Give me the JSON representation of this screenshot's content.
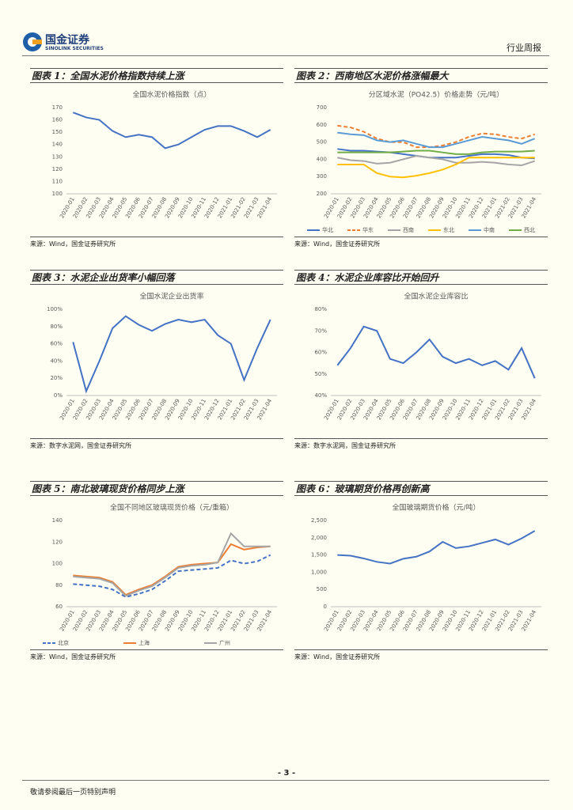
{
  "header": {
    "company": "国金证券",
    "company_en": "SINOLINK SECURITIES",
    "report_type": "行业周报"
  },
  "figures": [
    {
      "caption": "图表 1：全国水泥价格指数持续上涨",
      "source": "来源：Wind，国金证券研究所"
    },
    {
      "caption": "图表 2：西南地区水泥价格涨幅最大",
      "source": "来源：Wind，国金证券研究所"
    },
    {
      "caption": "图表 3：水泥企业出货率小幅回落",
      "source": "来源：数字水泥网，国金证券研究所"
    },
    {
      "caption": "图表 4：水泥企业库容比开始回升",
      "source": "来源：数字水泥网，国金证券研究所"
    },
    {
      "caption": "图表 5：南北玻璃现货价格同步上涨",
      "source": "来源：Wind，国金证券研究所"
    },
    {
      "caption": "图表 6：玻璃期货价格再创新高",
      "source": "来源：Wind，国金证券研究所"
    }
  ],
  "chart_data": [
    {
      "type": "line",
      "title": "全国水泥价格指数（点）",
      "categories": [
        "2020-01",
        "2020-02",
        "2020-03",
        "2020-04",
        "2020-05",
        "2020-06",
        "2020-07",
        "2020-08",
        "2020-09",
        "2020-10",
        "2020-11",
        "2020-12",
        "2021-01",
        "2021-02",
        "2021-03",
        "2021-04"
      ],
      "series": [
        {
          "name": "全国水泥价格指数",
          "color": "#4472c4",
          "values": [
            166,
            162,
            160,
            151,
            146,
            148,
            146,
            137,
            140,
            146,
            152,
            155,
            155,
            151,
            146,
            152
          ]
        }
      ],
      "ylim": [
        100,
        170
      ],
      "yticks": [
        100,
        110,
        120,
        130,
        140,
        150,
        160,
        170
      ],
      "legend": false
    },
    {
      "type": "line",
      "title": "分区域水泥（PO42.5）价格走势（元/吨）",
      "categories": [
        "2020-01",
        "2020-02",
        "2020-03",
        "2020-04",
        "2020-05",
        "2020-06",
        "2020-07",
        "2020-08",
        "2020-09",
        "2020-10",
        "2020-11",
        "2020-12",
        "2021-01",
        "2021-02",
        "2021-03",
        "2021-04"
      ],
      "series": [
        {
          "name": "华北",
          "color": "#4472c4",
          "values": [
            460,
            450,
            450,
            445,
            440,
            430,
            420,
            410,
            410,
            410,
            420,
            430,
            430,
            425,
            410,
            405
          ]
        },
        {
          "name": "华东",
          "color": "#ed7d31",
          "dash": true,
          "values": [
            595,
            585,
            560,
            520,
            500,
            500,
            470,
            470,
            480,
            500,
            530,
            550,
            545,
            530,
            520,
            545
          ]
        },
        {
          "name": "西南",
          "color": "#a5a5a5",
          "values": [
            410,
            395,
            390,
            375,
            380,
            400,
            420,
            410,
            400,
            380,
            380,
            385,
            380,
            370,
            365,
            390
          ]
        },
        {
          "name": "东北",
          "color": "#ffc000",
          "values": [
            370,
            370,
            370,
            320,
            300,
            295,
            305,
            320,
            340,
            370,
            410,
            410,
            410,
            410,
            410,
            410
          ]
        },
        {
          "name": "中南",
          "color": "#5b9bd5",
          "values": [
            555,
            545,
            540,
            510,
            500,
            510,
            490,
            470,
            470,
            490,
            510,
            530,
            520,
            510,
            490,
            520
          ]
        },
        {
          "name": "西北",
          "color": "#70ad47",
          "values": [
            440,
            440,
            440,
            440,
            440,
            445,
            450,
            450,
            440,
            430,
            430,
            440,
            445,
            445,
            445,
            450
          ]
        }
      ],
      "ylim": [
        200,
        700
      ],
      "yticks": [
        200,
        300,
        400,
        500,
        600,
        700
      ],
      "legend": true
    },
    {
      "type": "line",
      "title": "全国水泥企业出货率",
      "categories": [
        "2020-01",
        "2020-02",
        "2020-03",
        "2020-04",
        "2020-05",
        "2020-06",
        "2020-07",
        "2020-08",
        "2020-09",
        "2020-10",
        "2020-11",
        "2020-12",
        "2021-01",
        "2021-02",
        "2021-03",
        "2021-04"
      ],
      "series": [
        {
          "name": "全国水泥企业出货率",
          "color": "#4472c4",
          "values": [
            62,
            5,
            40,
            78,
            92,
            82,
            75,
            83,
            88,
            85,
            88,
            70,
            60,
            18,
            55,
            88
          ]
        }
      ],
      "ylim": [
        0,
        100
      ],
      "yticks": [
        {
          "value": 0,
          "label": "0%"
        },
        {
          "value": 20,
          "label": "20%"
        },
        {
          "value": 40,
          "label": "40%"
        },
        {
          "value": 60,
          "label": "60%"
        },
        {
          "value": 80,
          "label": "80%"
        },
        {
          "value": 100,
          "label": "100%"
        }
      ],
      "legend": false
    },
    {
      "type": "line",
      "title": "全国水泥企业库容比",
      "categories": [
        "2020-01",
        "2020-02",
        "2020-03",
        "2020-04",
        "2020-05",
        "2020-06",
        "2020-07",
        "2020-08",
        "2020-09",
        "2020-10",
        "2020-11",
        "2020-12",
        "2021-01",
        "2021-02",
        "2021-03",
        "2021-04"
      ],
      "series": [
        {
          "name": "全国水泥企业库容比",
          "color": "#4472c4",
          "values": [
            54,
            62,
            72,
            70,
            57,
            55,
            60,
            66,
            58,
            55,
            57,
            54,
            56,
            52,
            62,
            48
          ]
        }
      ],
      "ylim": [
        40,
        80
      ],
      "yticks": [
        {
          "value": 40,
          "label": "40%"
        },
        {
          "value": 50,
          "label": "50%"
        },
        {
          "value": 60,
          "label": "60%"
        },
        {
          "value": 70,
          "label": "70%"
        },
        {
          "value": 80,
          "label": "80%"
        }
      ],
      "legend": false
    },
    {
      "type": "line",
      "title": "全国不同地区玻璃现货价格（元/重箱）",
      "categories": [
        "2020-01",
        "2020-02",
        "2020-03",
        "2020-04",
        "2020-05",
        "2020-06",
        "2020-07",
        "2020-08",
        "2020-09",
        "2020-10",
        "2020-11",
        "2020-12",
        "2021-01",
        "2021-02",
        "2021-03",
        "2021-04"
      ],
      "series": [
        {
          "name": "北京",
          "color": "#4472c4",
          "dash": true,
          "values": [
            81,
            80,
            79,
            76,
            69,
            72,
            76,
            84,
            93,
            94,
            95,
            96,
            103,
            100,
            102,
            108
          ]
        },
        {
          "name": "上海",
          "color": "#ed7d31",
          "values": [
            89,
            88,
            87,
            83,
            71,
            76,
            80,
            88,
            97,
            99,
            100,
            101,
            118,
            113,
            115,
            116
          ]
        },
        {
          "name": "广州",
          "color": "#a5a5a5",
          "values": [
            88,
            87,
            86,
            82,
            70,
            75,
            79,
            87,
            96,
            98,
            99,
            101,
            128,
            116,
            116,
            116
          ]
        }
      ],
      "ylim": [
        60,
        140
      ],
      "yticks": [
        60,
        80,
        100,
        120,
        140
      ],
      "legend": true
    },
    {
      "type": "line",
      "title": "全国玻璃期货价格（元/吨）",
      "categories": [
        "2020-01",
        "2020-02",
        "2020-03",
        "2020-04",
        "2020-05",
        "2020-06",
        "2020-07",
        "2020-08",
        "2020-09",
        "2020-10",
        "2020-11",
        "2020-12",
        "2021-01",
        "2021-02",
        "2021-03",
        "2021-04"
      ],
      "series": [
        {
          "name": "全国玻璃期货价格",
          "color": "#4472c4",
          "values": [
            1500,
            1480,
            1400,
            1300,
            1250,
            1390,
            1450,
            1600,
            1880,
            1700,
            1750,
            1850,
            1950,
            1800,
            1980,
            2200
          ]
        }
      ],
      "ylim": [
        0,
        2500
      ],
      "yticks": [
        0,
        500,
        {
          "value": 1000,
          "label": "1,000"
        },
        {
          "value": 1500,
          "label": "1,500"
        },
        {
          "value": 2000,
          "label": "2,000"
        },
        {
          "value": 2500,
          "label": "2,500"
        }
      ],
      "legend": false
    }
  ],
  "footer": {
    "page": "- 3 -",
    "disclaimer": "敬请参阅最后一页特别声明"
  }
}
